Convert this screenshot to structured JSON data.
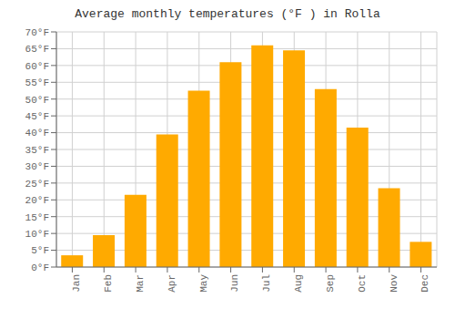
{
  "chart_data": {
    "type": "bar",
    "title": "Average monthly temperatures (°F ) in Rolla",
    "categories": [
      "Jan",
      "Feb",
      "Mar",
      "Apr",
      "May",
      "Jun",
      "Jul",
      "Aug",
      "Sep",
      "Oct",
      "Nov",
      "Dec"
    ],
    "values": [
      3.5,
      9.5,
      21.5,
      39.5,
      52.5,
      61.0,
      66.0,
      64.5,
      53.0,
      41.5,
      23.5,
      7.5
    ],
    "color": "#FFAA00",
    "ylim": [
      0,
      70
    ],
    "yticks": [
      {
        "value": 0,
        "label": "0°F"
      },
      {
        "value": 5,
        "label": "5°F"
      },
      {
        "value": 10,
        "label": "10°F"
      },
      {
        "value": 15,
        "label": "15°F"
      },
      {
        "value": 20,
        "label": "20°F"
      },
      {
        "value": 25,
        "label": "25°F"
      },
      {
        "value": 30,
        "label": "30°F"
      },
      {
        "value": 35,
        "label": "35°F"
      },
      {
        "value": 40,
        "label": "40°F"
      },
      {
        "value": 45,
        "label": "45°F"
      },
      {
        "value": 50,
        "label": "50°F"
      },
      {
        "value": 55,
        "label": "55°F"
      },
      {
        "value": 60,
        "label": "60°F"
      },
      {
        "value": 65,
        "label": "65°F"
      },
      {
        "value": 70,
        "label": "70°F"
      }
    ],
    "grid": true
  }
}
